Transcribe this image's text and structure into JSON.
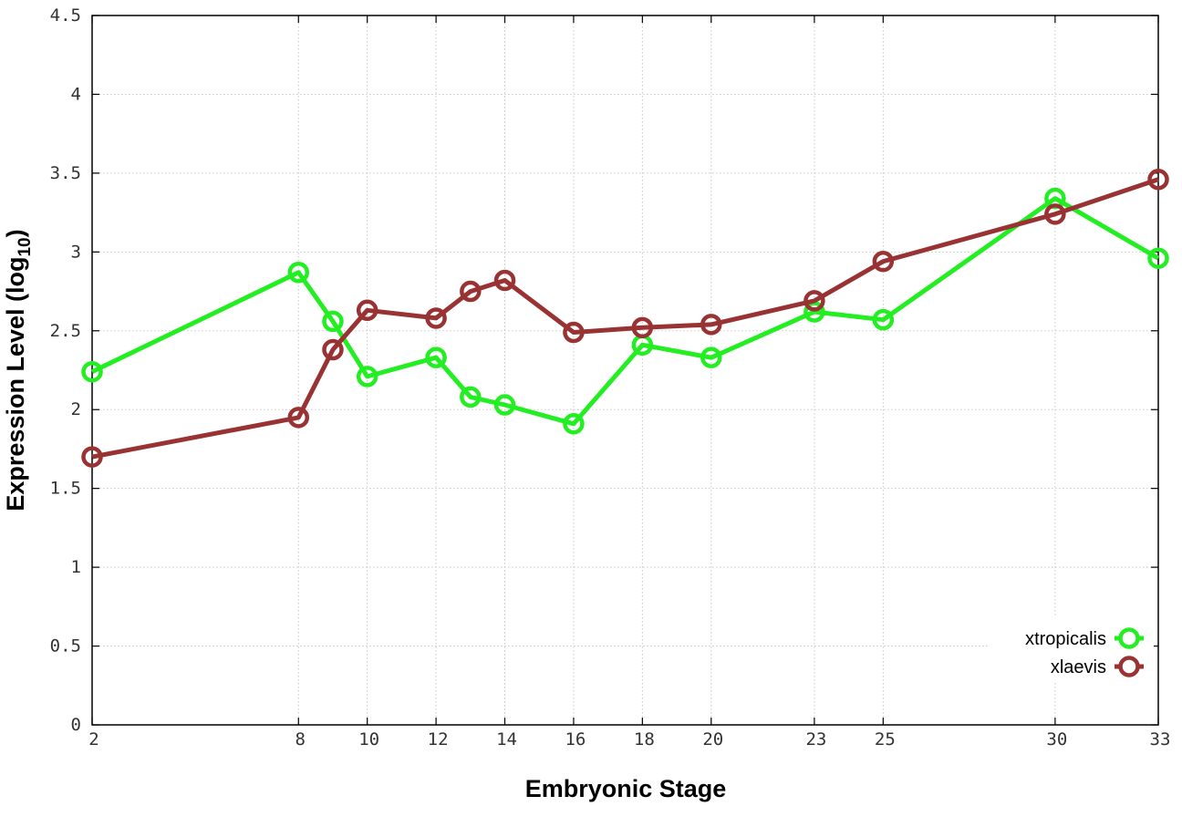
{
  "chart_data": {
    "type": "line",
    "xlabel": "Embryonic Stage",
    "ylabel": "Expression Level (log",
    "ylabel_sub": "10",
    "ylabel_close": ")",
    "xlim": [
      2,
      33
    ],
    "ylim": [
      0,
      4.5
    ],
    "xticks": [
      2,
      8,
      10,
      12,
      14,
      16,
      18,
      20,
      23,
      25,
      30,
      33
    ],
    "yticks": [
      0,
      0.5,
      1,
      1.5,
      2,
      2.5,
      3,
      3.5,
      4,
      4.5
    ],
    "grid": true,
    "legend_position": "bottom-right",
    "series": [
      {
        "name": "xtropicalis",
        "color": "#22ee22",
        "x": [
          2,
          8,
          9,
          10,
          12,
          13,
          14,
          16,
          18,
          20,
          23,
          25,
          30,
          33
        ],
        "y": [
          2.24,
          2.87,
          2.56,
          2.21,
          2.33,
          2.08,
          2.03,
          1.91,
          2.41,
          2.33,
          2.62,
          2.57,
          3.34,
          2.96
        ]
      },
      {
        "name": "xlaevis",
        "color": "#993333",
        "x": [
          2,
          8,
          9,
          10,
          12,
          13,
          14,
          16,
          18,
          20,
          23,
          25,
          30,
          33
        ],
        "y": [
          1.7,
          1.95,
          2.38,
          2.63,
          2.58,
          2.75,
          2.82,
          2.49,
          2.52,
          2.54,
          2.69,
          2.94,
          3.24,
          3.46
        ]
      }
    ]
  }
}
